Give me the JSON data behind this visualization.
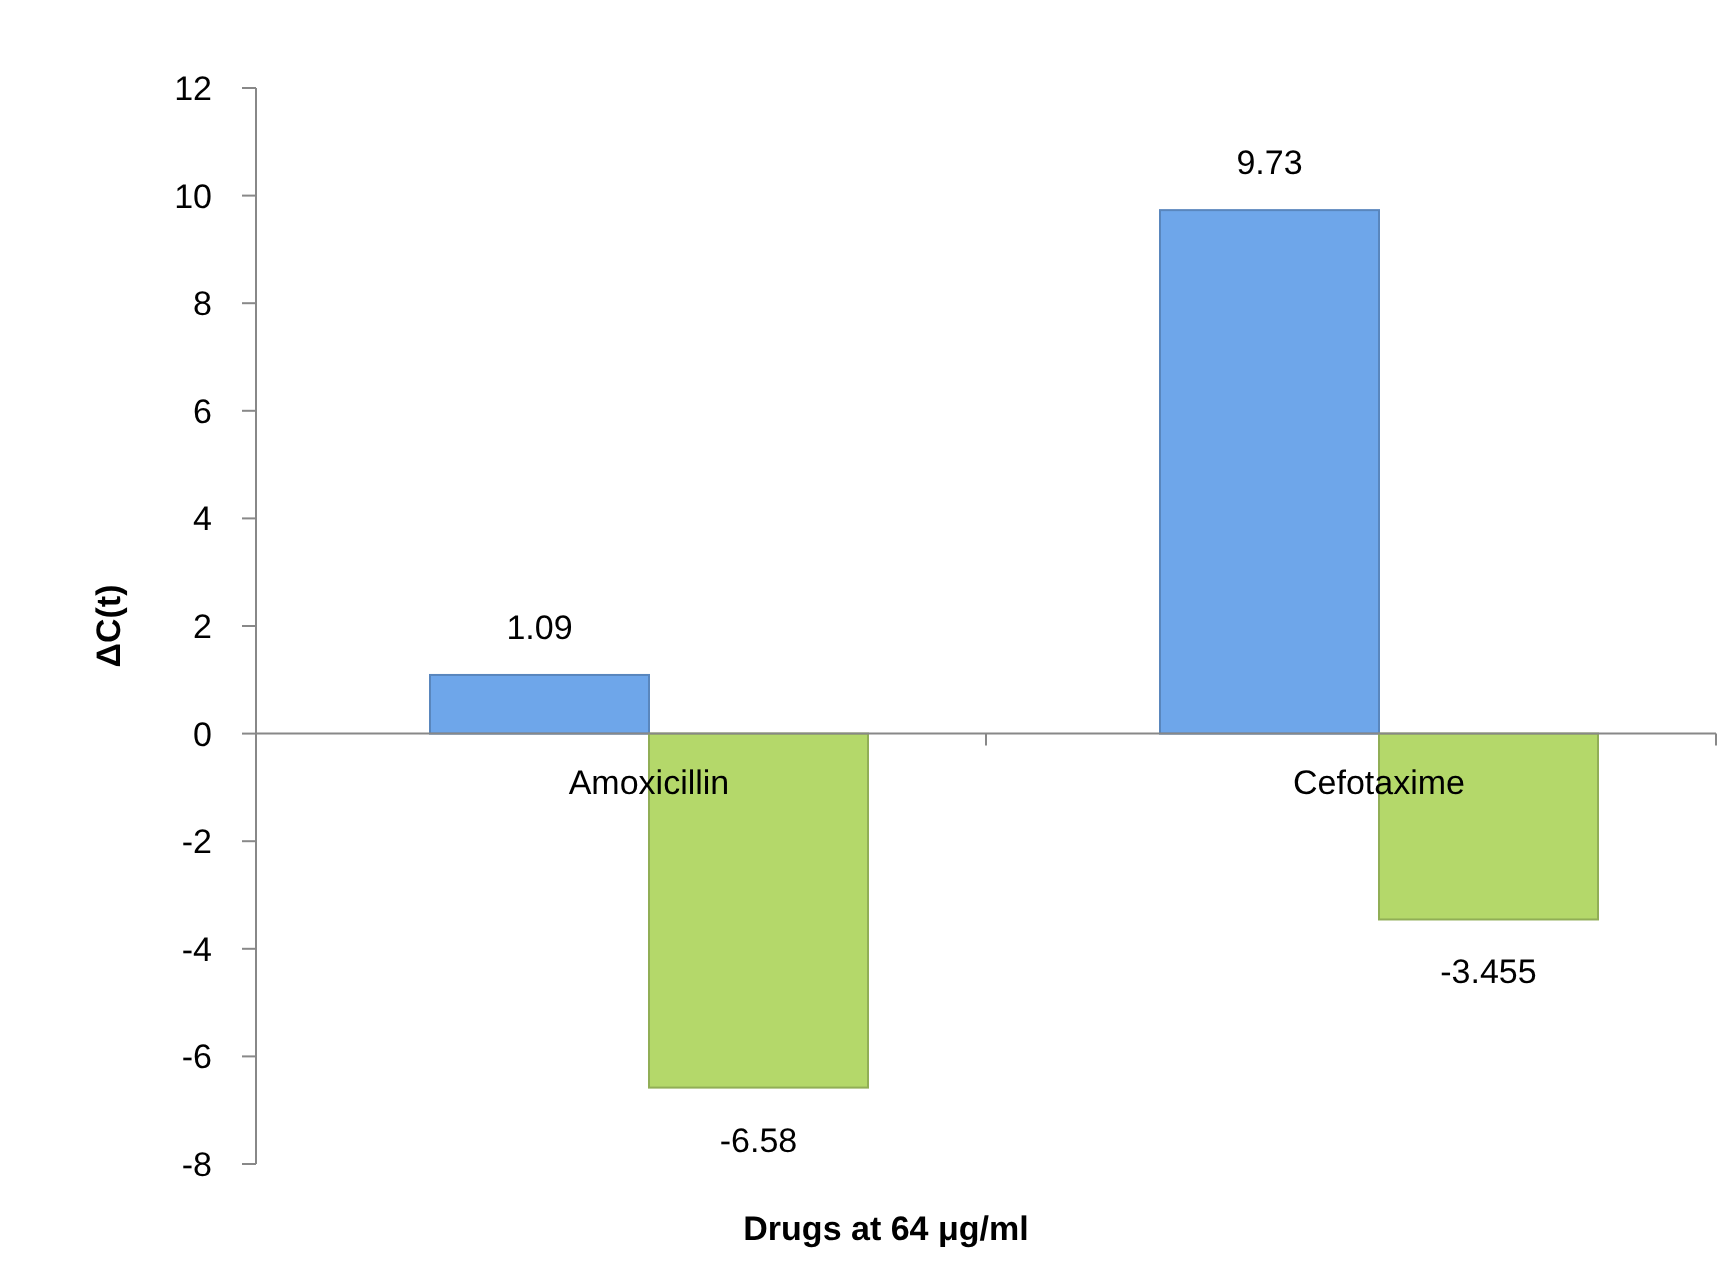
{
  "chart_data": {
    "type": "bar",
    "xlabel": "Drugs at 64 μg/ml",
    "ylabel": "ΔC(t)",
    "categories": [
      "Amoxicillin",
      "Cefotaxime"
    ],
    "series": [
      {
        "color": "#6ea6ea",
        "values": [
          1.09,
          9.73
        ]
      },
      {
        "color": "#b4d86a",
        "values": [
          -6.58,
          -3.455
        ]
      }
    ],
    "ylim": [
      -8,
      12
    ],
    "yticks": [
      -8,
      -6,
      -4,
      -2,
      0,
      2,
      4,
      6,
      8,
      10,
      12
    ],
    "data_labels": true,
    "grid": false
  }
}
